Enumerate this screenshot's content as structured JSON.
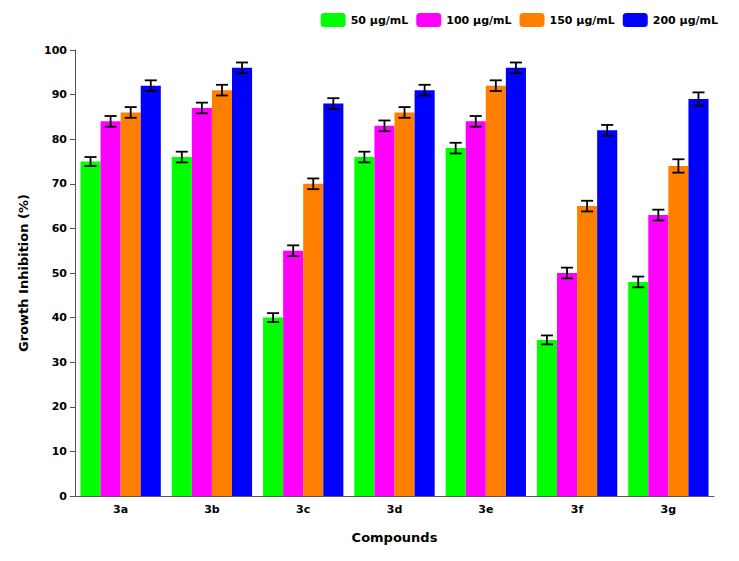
{
  "chart_data": {
    "type": "bar",
    "categories": [
      "3a",
      "3b",
      "3c",
      "3d",
      "3e",
      "3f",
      "3g"
    ],
    "series": [
      {
        "name": "50 μg/mL",
        "color": "#00ff00",
        "values": [
          75,
          76,
          40,
          76,
          78,
          35,
          48
        ],
        "errors": [
          1.0,
          1.2,
          1.0,
          1.2,
          1.2,
          1.0,
          1.2
        ]
      },
      {
        "name": "100 μg/mL",
        "color": "#ff00ff",
        "values": [
          84,
          87,
          55,
          83,
          84,
          50,
          63
        ],
        "errors": [
          1.2,
          1.2,
          1.2,
          1.2,
          1.2,
          1.2,
          1.2
        ]
      },
      {
        "name": "150 μg/mL",
        "color": "#ff8000",
        "values": [
          86,
          91,
          70,
          86,
          92,
          65,
          74
        ],
        "errors": [
          1.2,
          1.2,
          1.2,
          1.2,
          1.2,
          1.2,
          1.5
        ]
      },
      {
        "name": "200 μg/mL",
        "color": "#0000ff",
        "values": [
          92,
          96,
          88,
          91,
          96,
          82,
          89
        ],
        "errors": [
          1.2,
          1.2,
          1.2,
          1.2,
          1.2,
          1.2,
          1.5
        ]
      }
    ],
    "xlabel": "Compounds",
    "ylabel": "Growth Inhibition (%)",
    "ylim": [
      0,
      100
    ],
    "yticks": [
      0,
      10,
      20,
      30,
      40,
      50,
      60,
      70,
      80,
      90,
      100
    ],
    "grid": false,
    "legend": "upper right"
  }
}
